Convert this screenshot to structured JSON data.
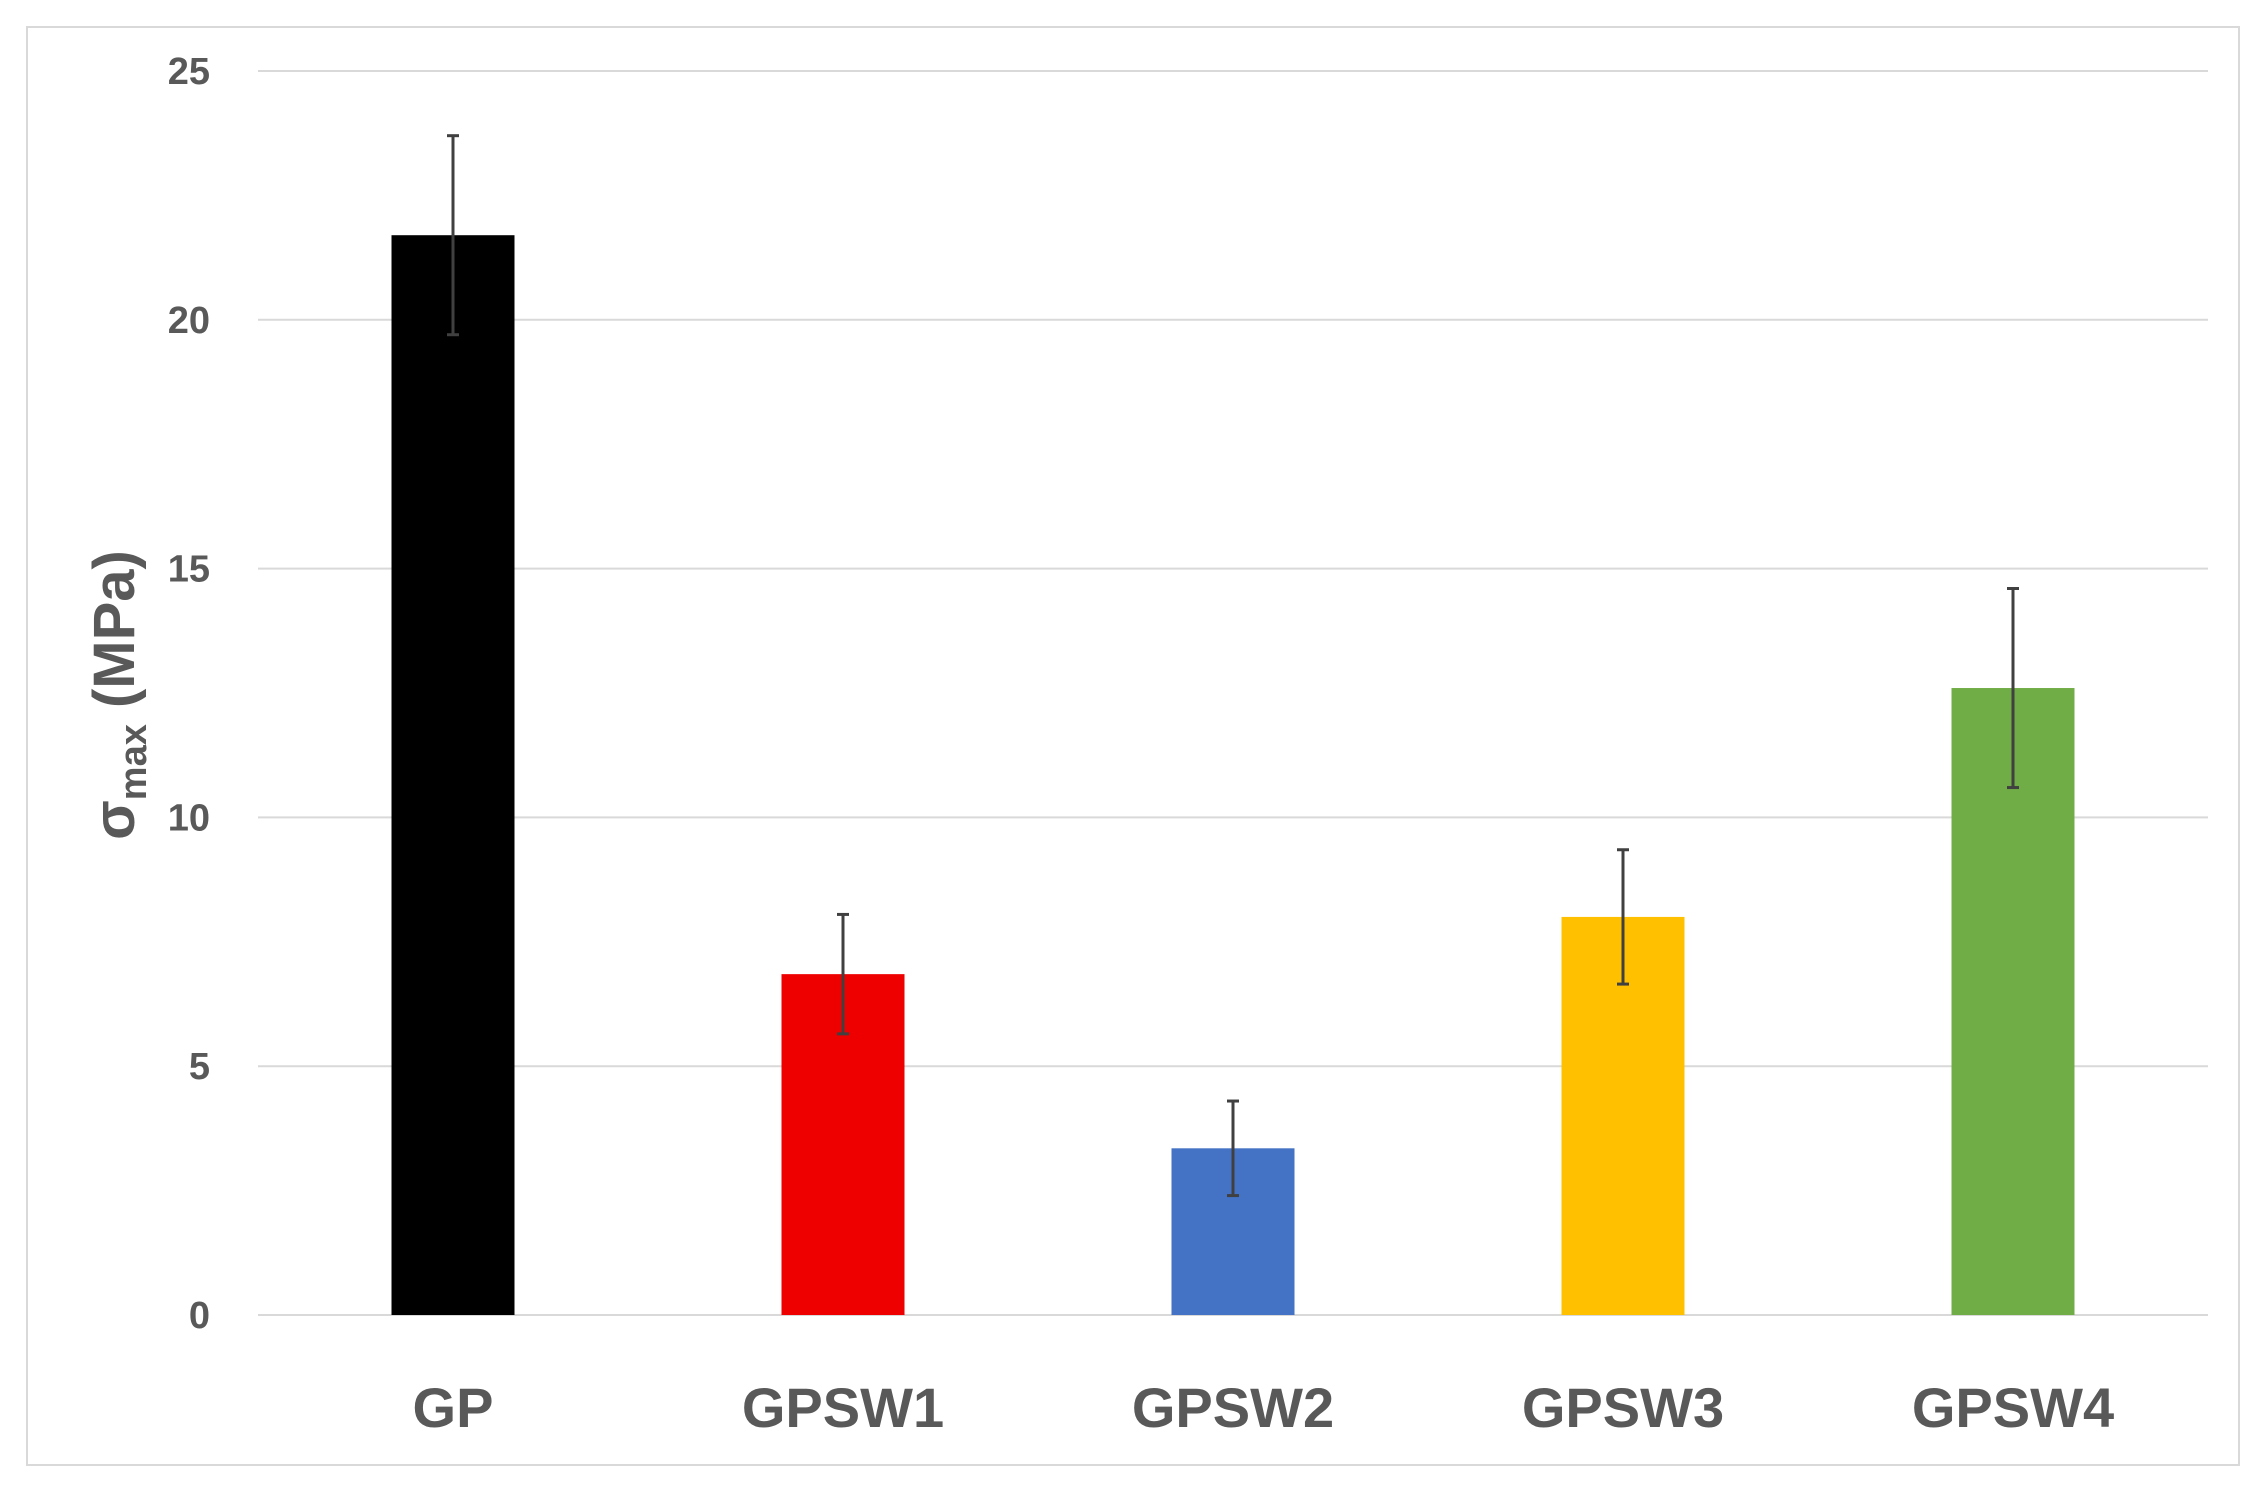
{
  "chart_data": {
    "type": "bar",
    "title": "",
    "xlabel": "",
    "ylabel": {
      "symbol": "σ",
      "subscript": "max",
      "unit": " (MPa)"
    },
    "ylim": [
      0,
      25
    ],
    "yticks": [
      0,
      5,
      10,
      15,
      20,
      25
    ],
    "grid": true,
    "legend": "none",
    "categories": [
      "GP",
      "GPSW1",
      "GPSW2",
      "GPSW3",
      "GPSW4"
    ],
    "values": [
      21.7,
      6.85,
      3.35,
      8.0,
      12.6
    ],
    "error": [
      2.0,
      1.2,
      0.95,
      1.35,
      2.0
    ],
    "colors": [
      "#000000",
      "#ee0000",
      "#4472c4",
      "#ffc000",
      "#70ad47"
    ],
    "axis_color": "#595959",
    "grid_color": "#d9d9d9",
    "errorbar_color": "#404040"
  }
}
